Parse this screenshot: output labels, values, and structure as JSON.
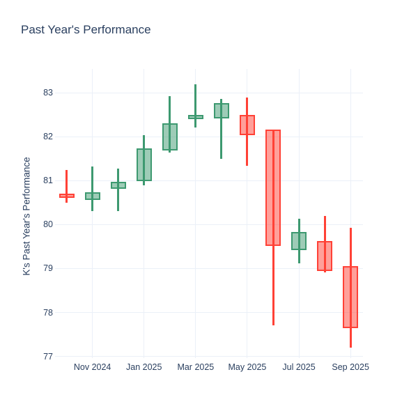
{
  "title": "Past Year's Performance",
  "y_axis": {
    "title": "K's Past Year's Performance",
    "ticks": [
      83,
      82,
      81,
      80,
      79,
      78,
      77
    ]
  },
  "x_axis": {
    "tick_labels": [
      "Nov 2024",
      "Jan 2025",
      "Mar 2025",
      "May 2025",
      "Jul 2025",
      "Sep 2025"
    ]
  },
  "colors": {
    "background": "#ffffff",
    "text": "#2a3f5f",
    "grid": "#ebf0f8",
    "increasing_line": "#3d9970",
    "increasing_fill": "rgba(61,153,112,0.5)",
    "decreasing_line": "#ff4136",
    "decreasing_fill": "rgba(255,65,54,0.5)"
  },
  "chart_data": {
    "type": "candlestick",
    "title": "Past Year's Performance",
    "xlabel": "",
    "ylabel": "K's Past Year's Performance",
    "ylim": [
      76.9,
      83.5
    ],
    "grid": true,
    "legend": "none",
    "categories": [
      "Oct 2024",
      "Nov 2024",
      "Dec 2024",
      "Jan 2025",
      "Feb 2025",
      "Mar 2025",
      "Apr 2025",
      "May 2025",
      "Jun 2025",
      "Jul 2025",
      "Aug 2025",
      "Sep 2025"
    ],
    "x_tick_labels_shown": [
      "Nov 2024",
      "Jan 2025",
      "Mar 2025",
      "May 2025",
      "Jul 2025",
      "Sep 2025"
    ],
    "candles": [
      {
        "month": "Oct 2024",
        "open": 80.7,
        "high": 81.24,
        "low": 80.49,
        "close": 80.61,
        "direction": "down"
      },
      {
        "month": "Nov 2024",
        "open": 80.56,
        "high": 81.32,
        "low": 80.31,
        "close": 80.73,
        "direction": "up"
      },
      {
        "month": "Dec 2024",
        "open": 80.81,
        "high": 81.28,
        "low": 80.3,
        "close": 80.97,
        "direction": "up"
      },
      {
        "month": "Jan 2025",
        "open": 80.98,
        "high": 82.03,
        "low": 80.89,
        "close": 81.73,
        "direction": "up"
      },
      {
        "month": "Feb 2025",
        "open": 81.69,
        "high": 82.92,
        "low": 81.63,
        "close": 82.31,
        "direction": "up"
      },
      {
        "month": "Mar 2025",
        "open": 82.39,
        "high": 83.19,
        "low": 82.2,
        "close": 82.5,
        "direction": "up"
      },
      {
        "month": "Apr 2025",
        "open": 82.41,
        "high": 82.85,
        "low": 81.49,
        "close": 82.77,
        "direction": "up"
      },
      {
        "month": "May 2025",
        "open": 82.49,
        "high": 82.89,
        "low": 81.33,
        "close": 82.04,
        "direction": "down"
      },
      {
        "month": "Jun 2025",
        "open": 82.16,
        "high": 82.16,
        "low": 77.71,
        "close": 79.51,
        "direction": "down"
      },
      {
        "month": "Jul 2025",
        "open": 79.42,
        "high": 80.13,
        "low": 79.12,
        "close": 79.83,
        "direction": "up"
      },
      {
        "month": "Aug 2025",
        "open": 79.62,
        "high": 80.2,
        "low": 78.91,
        "close": 78.95,
        "direction": "down"
      },
      {
        "month": "Sep 2025",
        "open": 79.05,
        "high": 79.93,
        "low": 77.2,
        "close": 77.65,
        "direction": "down"
      }
    ]
  }
}
